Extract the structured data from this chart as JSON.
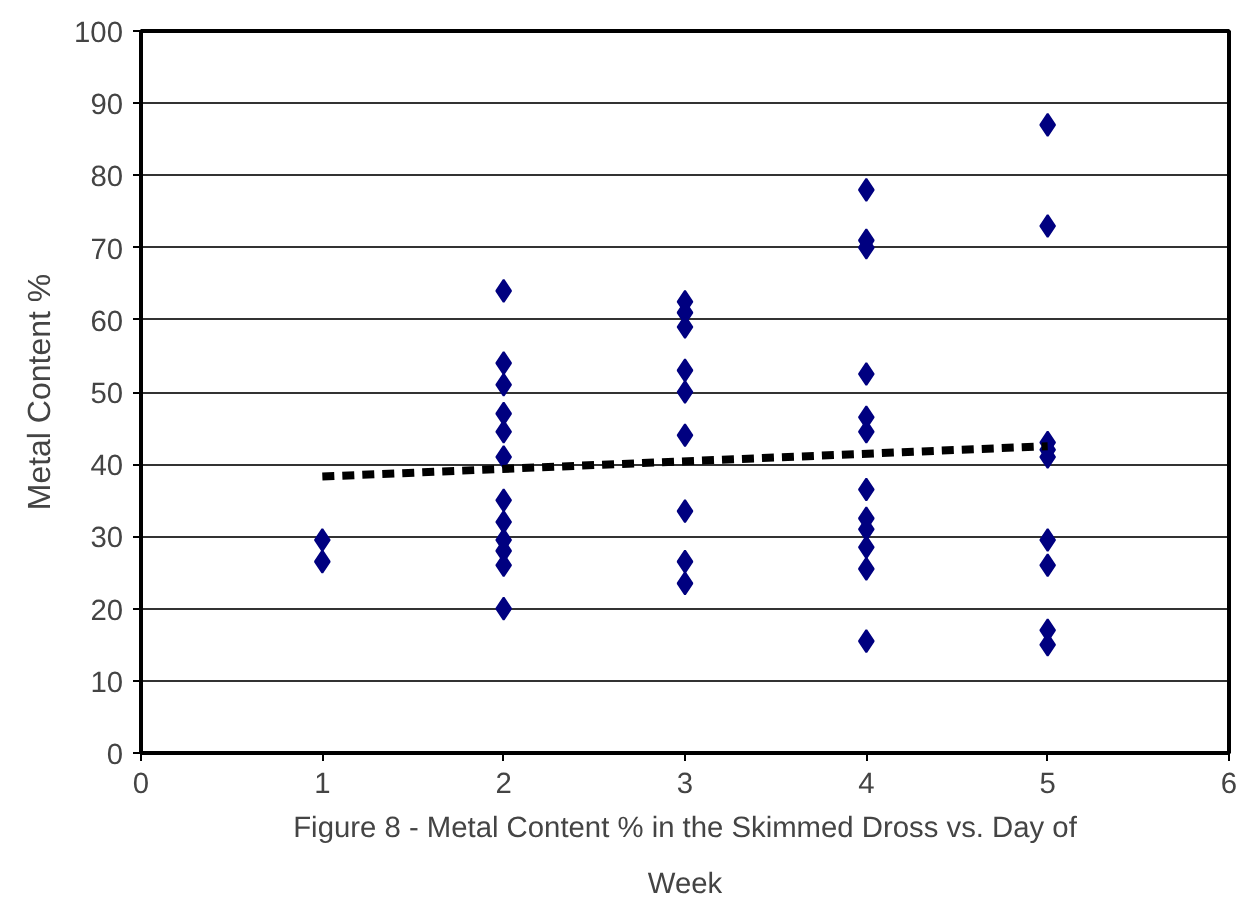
{
  "chart_data": {
    "type": "scatter",
    "title": "Figure 8 - Metal Content % in the Skimmed Dross vs. Day of Week",
    "ylabel": "Metal Content %",
    "xlim": [
      0,
      6
    ],
    "xticks": [
      0,
      1,
      2,
      3,
      4,
      5,
      6
    ],
    "ylim": [
      0,
      100
    ],
    "yticks": [
      0,
      10,
      20,
      30,
      40,
      50,
      60,
      70,
      80,
      90,
      100
    ],
    "grid": "y",
    "marker": "diamond",
    "series": [
      {
        "color": "#000080",
        "x": [
          1,
          1,
          2,
          2,
          2,
          2,
          2,
          2,
          2,
          2,
          2,
          2,
          2,
          2,
          3,
          3,
          3,
          3,
          3,
          3,
          3,
          3,
          3,
          4,
          4,
          4,
          4,
          4,
          4,
          4,
          4,
          4,
          4,
          4,
          4,
          5,
          5,
          5,
          5,
          5,
          5,
          5,
          5,
          5
        ],
        "values": [
          29.5,
          26.5,
          64,
          54,
          51,
          47,
          44.5,
          41,
          35,
          32,
          29.5,
          28,
          26,
          20,
          62.5,
          61,
          59,
          53,
          50,
          44,
          33.5,
          26.5,
          23.5,
          78,
          71,
          70,
          52.5,
          46.5,
          44.5,
          36.5,
          32.5,
          31,
          28.5,
          25.5,
          15.5,
          87,
          73,
          43,
          42,
          41,
          29.5,
          26,
          17,
          15
        ]
      },
      {
        "type": "line",
        "color": "#000000",
        "line_style": "dashed",
        "marker": "none",
        "x": [
          1,
          5
        ],
        "values": [
          38.3,
          42.5
        ]
      }
    ]
  }
}
